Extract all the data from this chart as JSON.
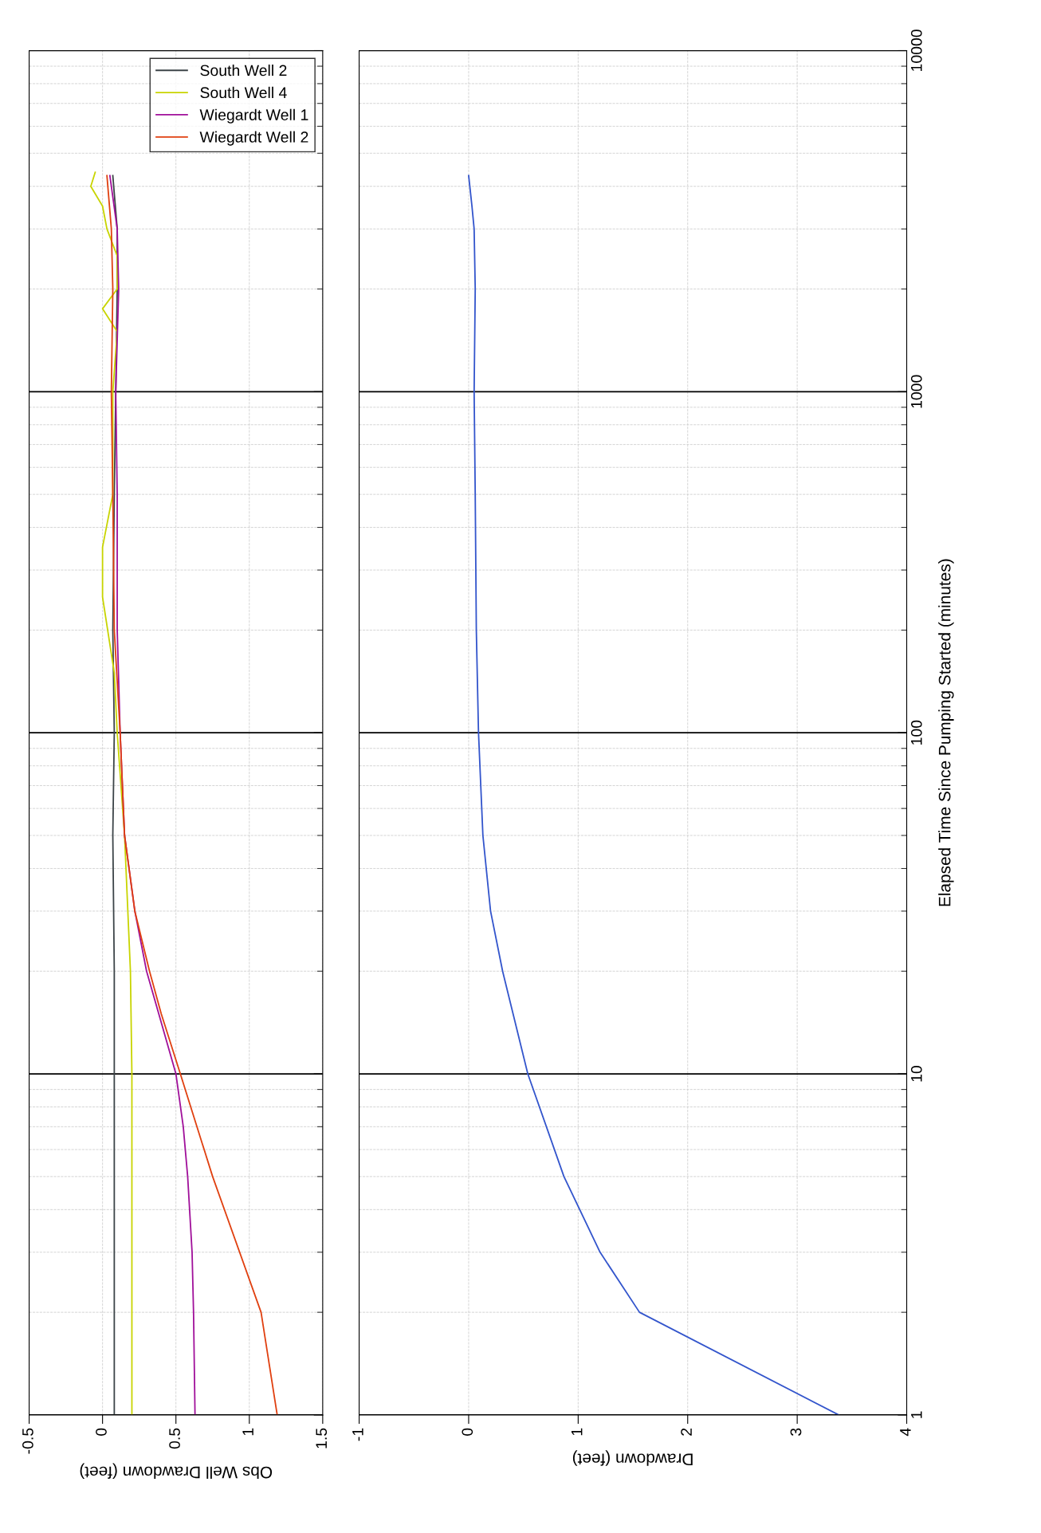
{
  "chart_data": [
    {
      "type": "line",
      "xlabel": "Obs Well Drawdown (feet)",
      "log": "y",
      "grid": true,
      "legend": "top right",
      "tick_labels": "x",
      "xlim": [
        -0.5,
        1.5
      ],
      "xticks": [
        -0.5,
        0,
        0.5,
        1,
        1.5
      ],
      "ylim": [
        1,
        10000
      ],
      "yticks": [
        1,
        10,
        100,
        1000,
        10000
      ],
      "series": [
        {
          "name": "South Well 2",
          "color": "#3c4448",
          "values": [
            1,
            2,
            5,
            10,
            20,
            50,
            100,
            200,
            500,
            1000,
            2000,
            3000,
            4300
          ],
          "x": [
            0.08,
            0.08,
            0.08,
            0.08,
            0.08,
            0.07,
            0.08,
            0.07,
            0.08,
            0.09,
            0.1,
            0.1,
            0.07
          ]
        },
        {
          "name": "South Well 4",
          "color": "#c8d400",
          "values": [
            1,
            2,
            5,
            10,
            20,
            50,
            100,
            150,
            250,
            350,
            500,
            1000,
            1500,
            1750,
            2000,
            2500,
            3000,
            3500,
            4000,
            4400
          ],
          "x": [
            0.2,
            0.2,
            0.2,
            0.2,
            0.19,
            0.15,
            0.1,
            0.08,
            0.0,
            0.0,
            0.07,
            0.07,
            0.1,
            0.0,
            0.1,
            0.1,
            0.03,
            0.0,
            -0.08,
            -0.05
          ]
        },
        {
          "name": "Wiegardt Well 1",
          "color": "#a0109a",
          "values": [
            1,
            2,
            3,
            5,
            7,
            10,
            20,
            30,
            50,
            100,
            200,
            500,
            1000,
            2000,
            3000,
            4300
          ],
          "x": [
            0.63,
            0.62,
            0.61,
            0.58,
            0.55,
            0.5,
            0.3,
            0.22,
            0.15,
            0.12,
            0.1,
            0.1,
            0.09,
            0.11,
            0.1,
            0.05
          ]
        },
        {
          "name": "Wiegardt Well 2",
          "color": "#e04010",
          "values": [
            1,
            2,
            5,
            10,
            15,
            20,
            30,
            50,
            100,
            200,
            500,
            1000,
            2000,
            3000,
            4300
          ],
          "x": [
            1.19,
            1.08,
            0.75,
            0.53,
            0.4,
            0.32,
            0.22,
            0.15,
            0.12,
            0.08,
            0.07,
            0.06,
            0.07,
            0.06,
            0.03
          ]
        }
      ]
    },
    {
      "type": "line",
      "xlabel": "Drawdown (feet)",
      "ylabel": "Elapsed Time Since Pumping Started (minutes)",
      "log": "y",
      "grid": true,
      "xlim": [
        -1,
        4
      ],
      "xticks": [
        -1,
        0,
        1,
        2,
        3,
        4
      ],
      "ylim": [
        1,
        10000
      ],
      "yticks": [
        1,
        10,
        100,
        1000,
        10000
      ],
      "series": [
        {
          "color": "#3355cc",
          "values": [
            1,
            2,
            3,
            5,
            10,
            20,
            30,
            50,
            100,
            200,
            500,
            1000,
            2000,
            3000,
            3500,
            4300
          ],
          "x": [
            3.38,
            1.56,
            1.2,
            0.87,
            0.54,
            0.31,
            0.2,
            0.13,
            0.09,
            0.07,
            0.06,
            0.05,
            0.06,
            0.05,
            0.03,
            0.0
          ]
        }
      ]
    }
  ]
}
